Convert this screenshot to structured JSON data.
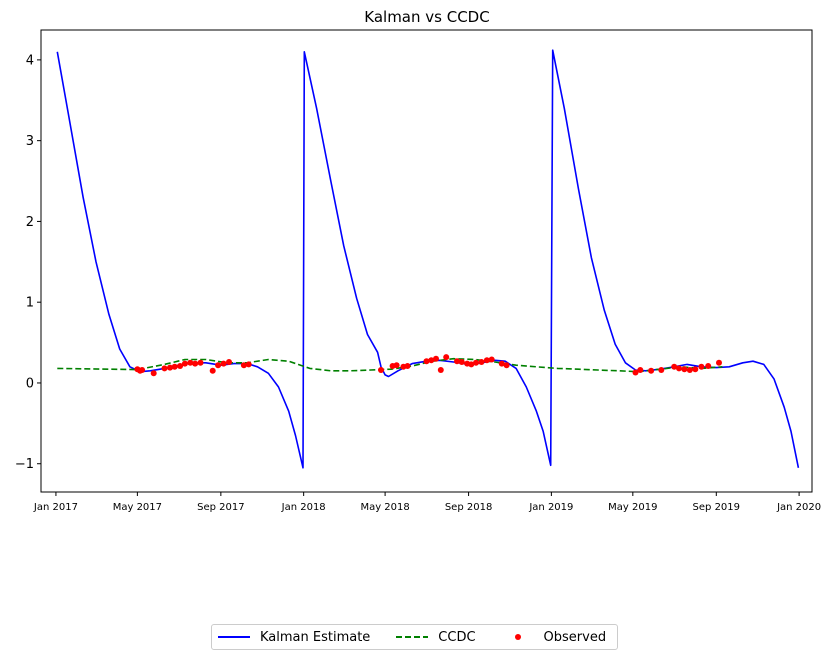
{
  "chart_data": {
    "type": "line",
    "title": "Kalman vs CCDC",
    "xlabel": "",
    "ylabel": "",
    "xlim": [
      "2016-12-10",
      "2020-01-20"
    ],
    "ylim": [
      -1.35,
      4.37
    ],
    "yticks": [
      -1,
      0,
      1,
      2,
      3,
      4
    ],
    "ytick_labels": [
      "−1",
      "0",
      "1",
      "2",
      "3",
      "4"
    ],
    "xticks": [
      "2017-01-01",
      "2017-05-01",
      "2017-09-01",
      "2018-01-01",
      "2018-05-01",
      "2018-09-01",
      "2019-01-01",
      "2019-05-01",
      "2019-09-01",
      "2020-01-01"
    ],
    "xtick_labels": [
      "Jan 2017",
      "May 2017",
      "Sep 2017",
      "Jan 2018",
      "May 2018",
      "Sep 2018",
      "Jan 2019",
      "May 2019",
      "Sep 2019",
      "Jan 2020"
    ],
    "grid": false,
    "legend_position": "bottom-center",
    "series": [
      {
        "name": "Kalman Estimate",
        "style": "solid",
        "color": "#0000ff",
        "x": [
          "2017-01-03",
          "2017-01-20",
          "2017-02-10",
          "2017-03-01",
          "2017-03-20",
          "2017-04-05",
          "2017-04-20",
          "2017-05-05",
          "2017-05-20",
          "2017-06-10",
          "2017-07-01",
          "2017-07-20",
          "2017-08-10",
          "2017-09-01",
          "2017-09-20",
          "2017-10-10",
          "2017-10-25",
          "2017-11-10",
          "2017-11-25",
          "2017-12-10",
          "2017-12-20",
          "2017-12-31",
          "2018-01-02",
          "2018-01-20",
          "2018-02-10",
          "2018-03-01",
          "2018-03-20",
          "2018-04-05",
          "2018-04-20",
          "2018-04-25",
          "2018-05-01",
          "2018-05-06",
          "2018-05-20",
          "2018-06-10",
          "2018-07-01",
          "2018-07-20",
          "2018-08-10",
          "2018-09-01",
          "2018-09-20",
          "2018-10-10",
          "2018-10-25",
          "2018-11-10",
          "2018-11-25",
          "2018-12-10",
          "2018-12-20",
          "2018-12-31",
          "2019-01-03",
          "2019-01-20",
          "2019-02-10",
          "2019-03-01",
          "2019-03-20",
          "2019-04-05",
          "2019-04-20",
          "2019-05-05",
          "2019-05-20",
          "2019-06-10",
          "2019-07-01",
          "2019-07-20",
          "2019-08-10",
          "2019-09-01",
          "2019-09-20",
          "2019-10-10",
          "2019-10-25",
          "2019-11-10",
          "2019-11-25",
          "2019-12-10",
          "2019-12-20",
          "2019-12-31"
        ],
        "y": [
          4.1,
          3.3,
          2.3,
          1.5,
          0.85,
          0.42,
          0.2,
          0.14,
          0.15,
          0.18,
          0.22,
          0.25,
          0.25,
          0.22,
          0.24,
          0.24,
          0.2,
          0.12,
          -0.05,
          -0.35,
          -0.65,
          -1.05,
          4.1,
          3.4,
          2.5,
          1.7,
          1.05,
          0.6,
          0.38,
          0.2,
          0.1,
          0.08,
          0.15,
          0.24,
          0.27,
          0.28,
          0.26,
          0.23,
          0.25,
          0.28,
          0.27,
          0.18,
          -0.05,
          -0.35,
          -0.6,
          -1.02,
          4.12,
          3.4,
          2.4,
          1.55,
          0.9,
          0.48,
          0.25,
          0.16,
          0.15,
          0.17,
          0.2,
          0.23,
          0.2,
          0.19,
          0.2,
          0.25,
          0.27,
          0.23,
          0.05,
          -0.3,
          -0.6,
          -1.05
        ]
      },
      {
        "name": "CCDC",
        "style": "dashed",
        "color": "#008000",
        "x": [
          "2017-01-03",
          "2017-02-10",
          "2017-03-20",
          "2017-05-01",
          "2017-06-10",
          "2017-07-10",
          "2017-08-10",
          "2017-09-10",
          "2017-10-10",
          "2017-11-10",
          "2017-12-10",
          "2018-01-10",
          "2018-02-10",
          "2018-03-10",
          "2018-04-10",
          "2018-05-10",
          "2018-06-10",
          "2018-07-10",
          "2018-08-10",
          "2018-09-10",
          "2018-10-10",
          "2018-11-10",
          "2018-12-10",
          "2019-01-10",
          "2019-02-10",
          "2019-03-10",
          "2019-04-10",
          "2019-05-10",
          "2019-06-10",
          "2019-07-10",
          "2019-08-10",
          "2019-09-10"
        ],
        "y": [
          0.18,
          0.175,
          0.17,
          0.165,
          0.23,
          0.29,
          0.29,
          0.25,
          0.25,
          0.29,
          0.27,
          0.18,
          0.15,
          0.15,
          0.16,
          0.17,
          0.21,
          0.27,
          0.3,
          0.29,
          0.26,
          0.22,
          0.2,
          0.18,
          0.17,
          0.16,
          0.15,
          0.14,
          0.17,
          0.2,
          0.18,
          0.2
        ]
      },
      {
        "name": "Observed",
        "style": "points",
        "color": "#ff0000",
        "x": [
          "2017-05-01",
          "2017-05-05",
          "2017-05-08",
          "2017-05-25",
          "2017-06-10",
          "2017-06-18",
          "2017-06-25",
          "2017-07-03",
          "2017-07-10",
          "2017-07-18",
          "2017-07-25",
          "2017-08-02",
          "2017-08-20",
          "2017-08-28",
          "2017-09-05",
          "2017-09-13",
          "2017-10-05",
          "2017-10-12",
          "2018-04-25",
          "2018-05-12",
          "2018-05-18",
          "2018-05-28",
          "2018-06-03",
          "2018-07-01",
          "2018-07-08",
          "2018-07-15",
          "2018-07-22",
          "2018-07-30",
          "2018-08-15",
          "2018-08-22",
          "2018-08-30",
          "2018-09-05",
          "2018-09-12",
          "2018-09-20",
          "2018-09-28",
          "2018-10-05",
          "2018-10-20",
          "2018-10-27",
          "2019-05-05",
          "2019-05-12",
          "2019-05-28",
          "2019-06-12",
          "2019-07-01",
          "2019-07-08",
          "2019-07-16",
          "2019-07-24",
          "2019-08-01",
          "2019-08-10",
          "2019-08-20",
          "2019-09-05"
        ],
        "y": [
          0.17,
          0.15,
          0.16,
          0.12,
          0.18,
          0.19,
          0.2,
          0.21,
          0.24,
          0.25,
          0.24,
          0.25,
          0.15,
          0.22,
          0.24,
          0.26,
          0.22,
          0.23,
          0.16,
          0.21,
          0.22,
          0.2,
          0.21,
          0.27,
          0.28,
          0.3,
          0.16,
          0.32,
          0.27,
          0.26,
          0.24,
          0.23,
          0.25,
          0.26,
          0.28,
          0.29,
          0.24,
          0.22,
          0.13,
          0.16,
          0.15,
          0.16,
          0.2,
          0.18,
          0.17,
          0.16,
          0.17,
          0.2,
          0.21,
          0.25
        ]
      }
    ]
  }
}
